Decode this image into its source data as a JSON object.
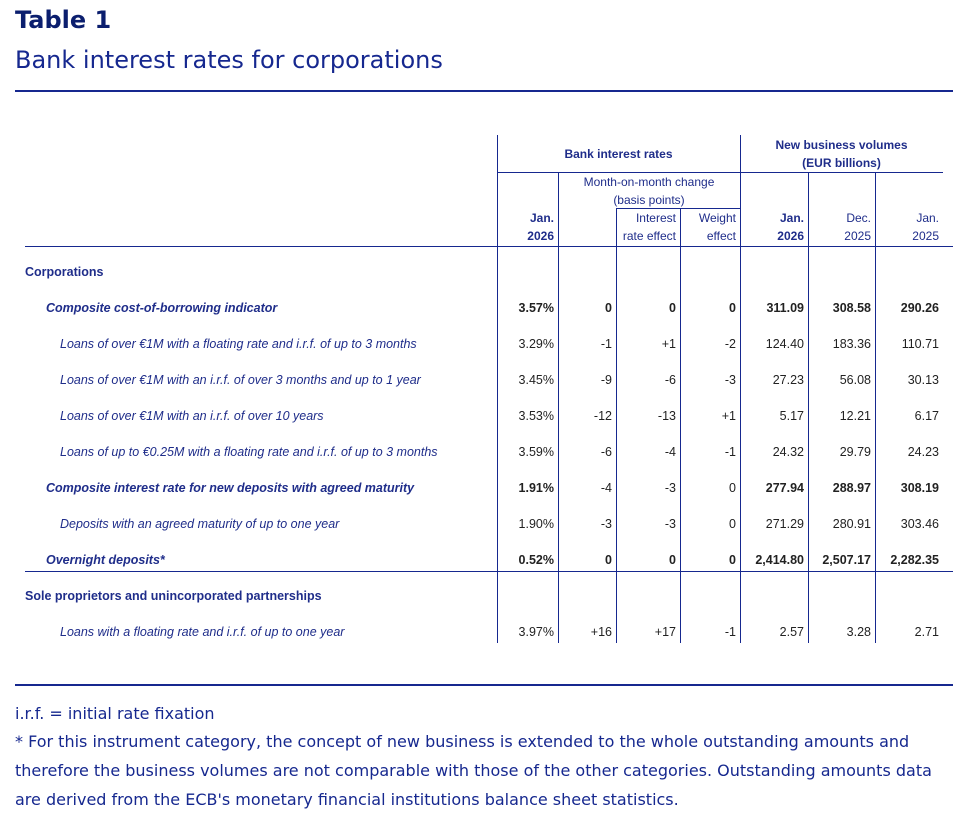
{
  "title": "Table 1",
  "subtitle": "Bank interest rates for corporations",
  "header": {
    "bank_rates": "Bank interest rates",
    "volumes_l1": "New business volumes",
    "volumes_l2": "(EUR billions)",
    "mom_l1": "Month-on-month change",
    "mom_l2": "(basis points)",
    "cols": [
      {
        "l1": "Jan.",
        "l2": "2026"
      },
      {
        "l1": "",
        "l2": ""
      },
      {
        "l1": "Interest",
        "l2": "rate effect"
      },
      {
        "l1": "Weight",
        "l2": "effect"
      },
      {
        "l1": "Jan.",
        "l2": "2026"
      },
      {
        "l1": "Dec.",
        "l2": "2025"
      },
      {
        "l1": "Jan.",
        "l2": "2025"
      }
    ]
  },
  "rows": [
    {
      "label": "Corporations",
      "level": 0,
      "values": []
    },
    {
      "label": "Composite cost-of-borrowing indicator",
      "level": 1,
      "bold": true,
      "values": [
        "3.57%",
        "0",
        "0",
        "0",
        "311.09",
        "308.58",
        "290.26"
      ]
    },
    {
      "label": "Loans of over €1M with a floating rate and i.r.f. of up to 3 months",
      "level": 2,
      "values": [
        "3.29%",
        "-1",
        "+1",
        "-2",
        "124.40",
        "183.36",
        "110.71"
      ]
    },
    {
      "label": "Loans of over €1M with an i.r.f. of over 3 months and up to 1 year",
      "level": 2,
      "values": [
        "3.45%",
        "-9",
        "-6",
        "-3",
        "27.23",
        "56.08",
        "30.13"
      ]
    },
    {
      "label": "Loans of over €1M with an i.r.f. of over 10 years",
      "level": 2,
      "values": [
        "3.53%",
        "-12",
        "-13",
        "+1",
        "5.17",
        "12.21",
        "6.17"
      ]
    },
    {
      "label": "Loans of up to €0.25M with a floating rate and i.r.f. of up to 3 months",
      "level": 2,
      "values": [
        "3.59%",
        "-6",
        "-4",
        "-1",
        "24.32",
        "29.79",
        "24.23"
      ]
    },
    {
      "label": "Composite interest rate for new deposits with agreed maturity",
      "level": 1,
      "bold": true,
      "values": [
        "1.91%",
        "-4",
        "-3",
        "0",
        "277.94",
        "288.97",
        "308.19"
      ]
    },
    {
      "label": "Deposits with an agreed maturity of up to one year",
      "level": 2,
      "values": [
        "1.90%",
        "-3",
        "-3",
        "0",
        "271.29",
        "280.91",
        "303.46"
      ]
    },
    {
      "label": "Overnight deposits*",
      "level": 1,
      "bold": true,
      "values": [
        "0.52%",
        "0",
        "0",
        "0",
        "2,414.80",
        "2,507.17",
        "2,282.35"
      ]
    },
    {
      "label": "Sole proprietors and unincorporated partnerships",
      "level": 0,
      "values": []
    },
    {
      "label": "Loans with a floating rate and i.r.f. of up to one year",
      "level": 2,
      "values": [
        "3.97%",
        "+16",
        "+17",
        "-1",
        "2.57",
        "3.28",
        "2.71"
      ]
    }
  ],
  "footnotes": [
    "i.r.f. = initial rate fixation",
    "* For this instrument category, the concept of new business is extended to the whole outstanding amounts and therefore the business volumes are not comparable with those of the other categories. Outstanding amounts data are derived from the ECB's monetary financial institutions balance sheet statistics."
  ]
}
